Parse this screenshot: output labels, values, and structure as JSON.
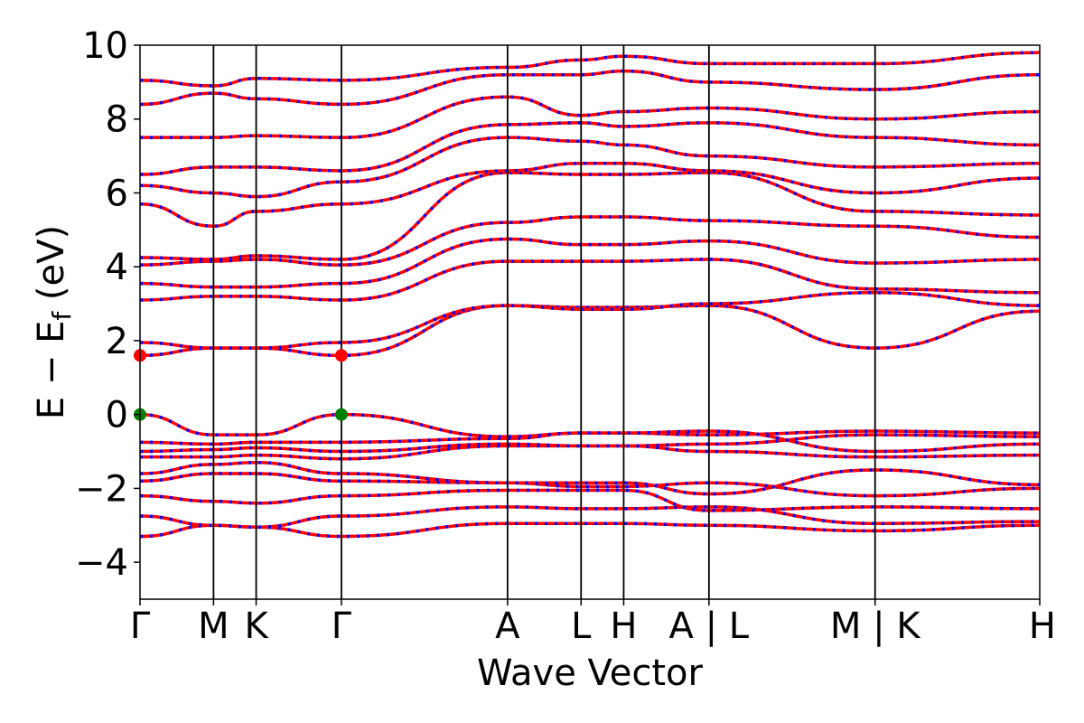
{
  "chart_data": {
    "type": "line",
    "xlabel": "Wave Vector",
    "ylabel": "E − E_f (eV)",
    "ylabel_main": "E − E",
    "ylabel_sub": "f",
    "ylabel_tail": " (eV)",
    "ylim": [
      -5,
      10
    ],
    "y_ticks": [
      -4,
      -2,
      0,
      2,
      4,
      6,
      8,
      10
    ],
    "y_tick_labels": [
      "−4",
      "−2",
      "0",
      "2",
      "4",
      "6",
      "8",
      "10"
    ],
    "kpath": [
      {
        "label": "Γ",
        "x": 0.0
      },
      {
        "label": "M",
        "x": 0.5
      },
      {
        "label": "K",
        "x": 0.79
      },
      {
        "label": "Γ",
        "x": 1.37
      },
      {
        "label": "A",
        "x": 2.5
      },
      {
        "label": "L",
        "x": 3.0
      },
      {
        "label": "H",
        "x": 3.29
      },
      {
        "label": "A | L",
        "x": 3.87
      },
      {
        "label": "M | K",
        "x": 5.0
      },
      {
        "label": "H",
        "x": 6.12
      }
    ],
    "xlim": [
      0,
      6.12
    ],
    "colors": {
      "spin_up": "#ff0000",
      "spin_down": "#0000ff",
      "cbm": "#ff0000",
      "vbm": "#008000",
      "axes": "#000000"
    },
    "series_note_style": "spin up solid red, spin down dashed blue (overlapping)",
    "cbm_points": [
      [
        0.0,
        1.6
      ],
      [
        1.37,
        1.6
      ]
    ],
    "vbm_points": [
      [
        0.0,
        0.0
      ],
      [
        1.37,
        0.0
      ]
    ],
    "bands": [
      [
        -3.3,
        -3.0,
        -3.05,
        -3.3,
        -2.95,
        -2.95,
        -2.95,
        -3.0,
        -3.15,
        -3.0
      ],
      [
        -2.75,
        -3.0,
        -3.05,
        -2.75,
        -2.5,
        -2.55,
        -2.55,
        -2.5,
        -2.95,
        -2.9
      ],
      [
        -2.2,
        -2.35,
        -2.4,
        -2.2,
        -2.05,
        -2.05,
        -2.05,
        -2.6,
        -2.5,
        -2.55
      ],
      [
        -1.8,
        -1.6,
        -1.6,
        -1.8,
        -1.85,
        -1.95,
        -1.95,
        -1.85,
        -2.2,
        -2.0
      ],
      [
        -1.6,
        -1.35,
        -1.3,
        -1.6,
        -1.85,
        -1.85,
        -1.85,
        -2.15,
        -1.5,
        -1.9
      ],
      [
        -1.15,
        -1.15,
        -1.1,
        -1.2,
        -0.85,
        -0.85,
        -0.85,
        -1.0,
        -1.15,
        -1.1
      ],
      [
        -1.0,
        -0.95,
        -0.9,
        -1.0,
        -0.8,
        -0.85,
        -0.85,
        -0.8,
        -0.55,
        -0.6
      ],
      [
        -0.75,
        -0.8,
        -0.75,
        -0.75,
        -0.65,
        -0.5,
        -0.5,
        -0.55,
        -0.45,
        -0.5
      ],
      [
        0.0,
        -0.55,
        -0.55,
        0.0,
        -0.6,
        -0.5,
        -0.5,
        -0.45,
        -1.0,
        -0.8
      ],
      [
        1.6,
        1.8,
        1.8,
        1.6,
        2.95,
        2.9,
        2.9,
        2.95,
        1.8,
        2.8
      ],
      [
        1.95,
        1.8,
        1.8,
        1.95,
        2.95,
        2.85,
        2.85,
        3.0,
        3.3,
        2.95
      ],
      [
        3.1,
        3.2,
        3.2,
        3.1,
        4.15,
        4.15,
        4.15,
        4.2,
        3.4,
        3.3
      ],
      [
        3.55,
        3.45,
        3.45,
        3.55,
        4.75,
        4.6,
        4.6,
        4.7,
        4.1,
        4.2
      ],
      [
        4.05,
        4.15,
        4.2,
        4.05,
        5.2,
        5.35,
        5.35,
        5.25,
        5.1,
        4.8
      ],
      [
        4.25,
        4.2,
        4.3,
        4.2,
        6.55,
        6.5,
        6.5,
        6.55,
        5.5,
        5.4
      ],
      [
        5.7,
        5.1,
        5.5,
        5.7,
        6.6,
        6.8,
        6.8,
        6.6,
        6.0,
        6.4
      ],
      [
        6.2,
        6.0,
        5.9,
        6.3,
        7.5,
        7.4,
        7.3,
        7.0,
        6.7,
        6.8
      ],
      [
        6.5,
        6.7,
        6.7,
        6.6,
        7.85,
        7.9,
        7.8,
        7.9,
        7.5,
        7.3
      ],
      [
        7.5,
        7.5,
        7.55,
        7.5,
        8.6,
        8.1,
        8.2,
        8.3,
        8.0,
        8.2
      ],
      [
        8.4,
        8.7,
        8.55,
        8.4,
        9.2,
        9.2,
        9.3,
        9.0,
        8.8,
        9.2
      ],
      [
        9.05,
        8.9,
        9.1,
        9.05,
        9.4,
        9.6,
        9.7,
        9.5,
        9.5,
        9.8
      ]
    ]
  }
}
